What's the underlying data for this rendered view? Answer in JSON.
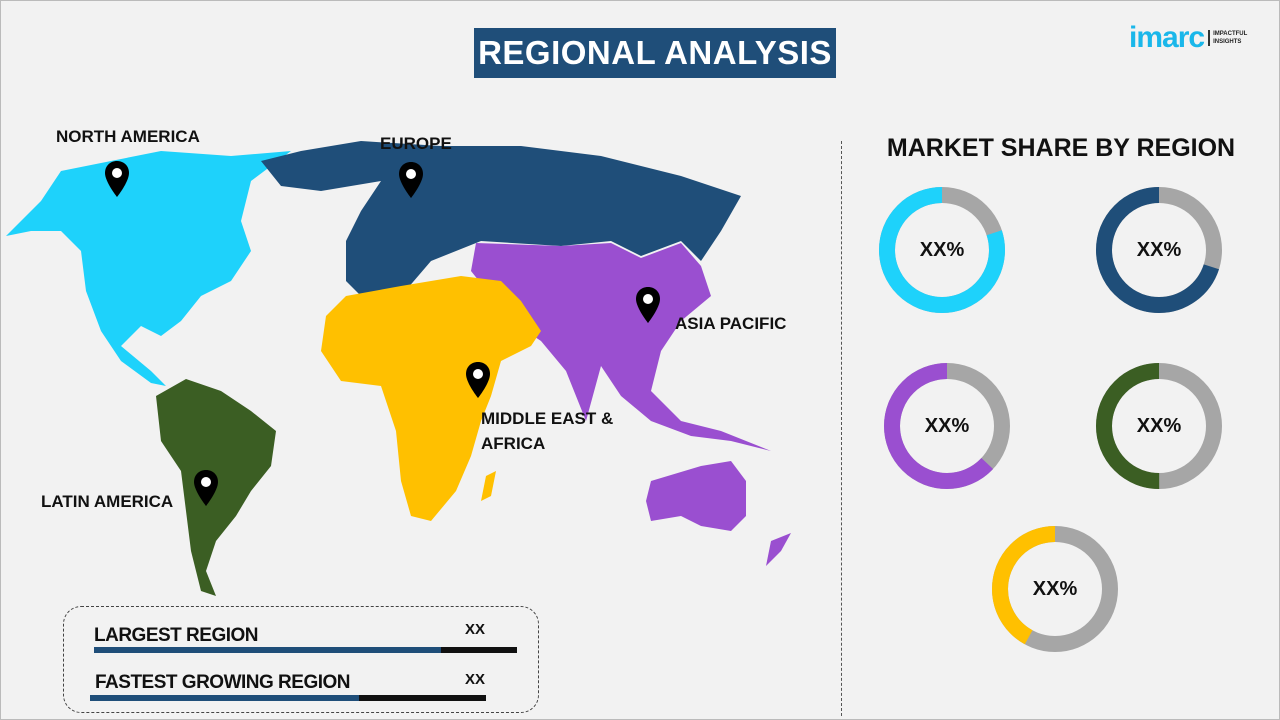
{
  "header": {
    "title": "REGIONAL ANALYSIS",
    "logo_word": "imarc",
    "logo_tagline_1": "IMPACTFUL",
    "logo_tagline_2": "INSIGHTS"
  },
  "map": {
    "regions": [
      {
        "label": "NORTH AMERICA",
        "color": "#1ed2fb"
      },
      {
        "label": "EUROPE",
        "color": "#1f4e79"
      },
      {
        "label": "ASIA PACIFIC",
        "color": "#9a4fd0"
      },
      {
        "label": "MIDDLE EAST & AFRICA",
        "color": "#ffc000"
      },
      {
        "label": "LATIN AMERICA",
        "color": "#3b5e23"
      }
    ]
  },
  "market_share": {
    "title": "MARKET SHARE BY REGION",
    "remainder_color": "#a6a6a6",
    "donuts": [
      {
        "region": "NORTH AMERICA",
        "label": "XX%",
        "color": "#1ed2fb",
        "fill_fraction": 0.8
      },
      {
        "region": "EUROPE",
        "label": "XX%",
        "color": "#1f4e79",
        "fill_fraction": 0.7
      },
      {
        "region": "ASIA PACIFIC",
        "label": "XX%",
        "color": "#9a4fd0",
        "fill_fraction": 0.63
      },
      {
        "region": "LATIN AMERICA",
        "label": "XX%",
        "color": "#3b5e23",
        "fill_fraction": 0.5
      },
      {
        "region": "MIDDLE EAST & AFRICA",
        "label": "XX%",
        "color": "#ffc000",
        "fill_fraction": 0.42
      }
    ]
  },
  "summary": {
    "largest": {
      "label": "LARGEST REGION",
      "value": "XX",
      "fill_fraction": 0.82
    },
    "fastest": {
      "label": "FASTEST GROWING REGION",
      "value": "XX",
      "fill_fraction": 0.68
    }
  }
}
